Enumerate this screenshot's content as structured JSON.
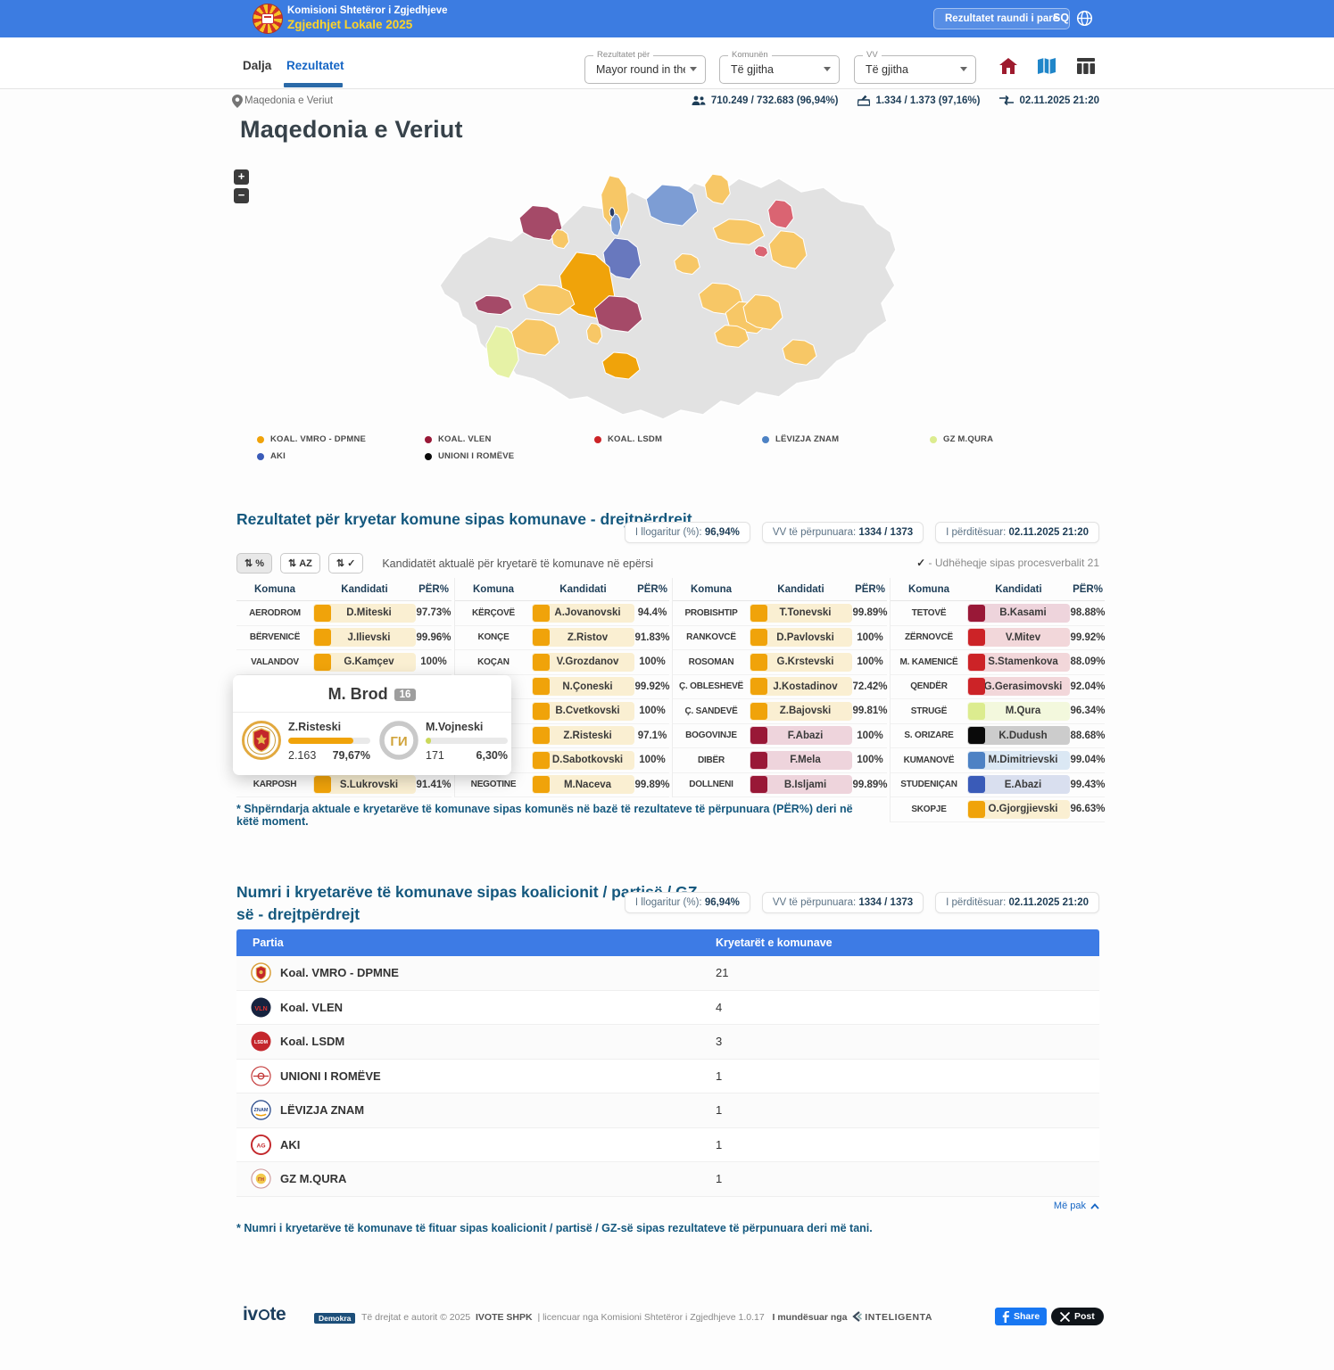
{
  "header": {
    "org": "Komisioni Shtetëror i Zgjedhjeve",
    "title": "Zgjedhjet Lokale 2025",
    "round_button": "Rezultatet raundi i parë",
    "lang": "SQ"
  },
  "nav": {
    "tabs": [
      {
        "label": "Dalja"
      },
      {
        "label": "Rezultatet"
      }
    ],
    "filters": [
      {
        "label": "Rezultatet për",
        "value": "Mayor round in the ..."
      },
      {
        "label": "Komunën",
        "value": "Të gjitha"
      },
      {
        "label": "VV",
        "value": "Të gjitha"
      }
    ]
  },
  "breadcrumb": {
    "location": "Maqedonia e Veriut"
  },
  "stats": {
    "turnout": "710.249 / 732.683 (96,94%)",
    "stations": "1.334 / 1.373 (97,16%)",
    "updated": "02.11.2025 21:20"
  },
  "page_title": "Maqedonia e Veriut",
  "map": {
    "zoom_in": "+",
    "zoom_out": "−"
  },
  "legend": [
    {
      "label": "KOAL. VMRO - DPMNE",
      "color": "#f0a30a"
    },
    {
      "label": "KOAL. VLEN",
      "color": "#991837"
    },
    {
      "label": "KOAL. LSDM",
      "color": "#cc2327"
    },
    {
      "label": "LËVIZJA ZNAM",
      "color": "#4d82c4"
    },
    {
      "label": "GZ M.QURA",
      "color": "#dcec8f"
    },
    {
      "label": "AKI",
      "color": "#3a5bb8"
    },
    {
      "label": "UNIONI I ROMËVE",
      "color": "#0a0a0a"
    }
  ],
  "stats_chips": [
    {
      "label": "I llogaritur (%):",
      "value": "96,94%"
    },
    {
      "label": "VV të përpunuara:",
      "value": "1334 / 1373"
    },
    {
      "label": "I përditësuar:",
      "value": "02.11.2025 21:20"
    }
  ],
  "section1": {
    "title": "Rezultatet për kryetar komune sipas komunave - drejtpërdrejt",
    "sort_buttons": [
      "%",
      "AZ",
      "✓"
    ],
    "caption": "Kandidatët aktualë për kryetarë të komunave në epërsi",
    "check_note": "- Udhëheqje sipas procesverbalit 21",
    "col_headers": [
      "Komuna",
      "Kandidati",
      "PËR%"
    ],
    "footnote": "* Shpërndarja aktuale e kryetarëve të komunave sipas komunës në bazë të rezultateve të përpunuara (PËR%) deri në këtë moment."
  },
  "results_columns": [
    [
      {
        "komuna": "AERODROM",
        "candidate": "D.Miteski",
        "pct": "97.73%",
        "party": "vmro"
      },
      {
        "komuna": "BËRVENICË",
        "candidate": "J.Ilievski",
        "pct": "99.96%",
        "party": "vmro"
      },
      {
        "komuna": "VALANDOV",
        "candidate": "G.Kamçev",
        "pct": "100%",
        "party": "vmro"
      },
      {
        "komuna": "",
        "candidate": "",
        "pct": "",
        "party": null
      },
      {
        "komuna": "",
        "candidate": "",
        "pct": "",
        "party": null
      },
      {
        "komuna": "",
        "candidate": "",
        "pct": "",
        "party": null
      },
      {
        "komuna": "",
        "candidate": "",
        "pct": "",
        "party": null
      },
      {
        "komuna": "KARPOSH",
        "candidate": "S.Lukrovski",
        "pct": "91.41%",
        "party": "vmro"
      }
    ],
    [
      {
        "komuna": "KËRÇOVË",
        "candidate": "A.Jovanovski",
        "pct": "94.4%",
        "party": "vmro"
      },
      {
        "komuna": "KONÇE",
        "candidate": "Z.Ristov",
        "pct": "91.83%",
        "party": "vmro"
      },
      {
        "komuna": "KOÇAN",
        "candidate": "V.Grozdanov",
        "pct": "100%",
        "party": "vmro"
      },
      {
        "komuna": "",
        "candidate": "N.Çoneski",
        "pct": "99.92%",
        "party": "vmro"
      },
      {
        "komuna": "",
        "candidate": "B.Cvetkovski",
        "pct": "100%",
        "party": "vmro"
      },
      {
        "komuna": "",
        "candidate": "Z.Risteski",
        "pct": "97.1%",
        "party": "vmro"
      },
      {
        "komuna": "",
        "candidate": "D.Sabotkovski",
        "pct": "100%",
        "party": "vmro"
      },
      {
        "komuna": "NEGOTINE",
        "candidate": "M.Naceva",
        "pct": "99.89%",
        "party": "vmro"
      }
    ],
    [
      {
        "komuna": "PROBISHTIP",
        "candidate": "T.Tonevski",
        "pct": "99.89%",
        "party": "vmro"
      },
      {
        "komuna": "RANKOVCË",
        "candidate": "D.Pavlovski",
        "pct": "100%",
        "party": "vmro"
      },
      {
        "komuna": "ROSOMAN",
        "candidate": "G.Krstevski",
        "pct": "100%",
        "party": "vmro"
      },
      {
        "komuna": "Ç. OBLESHEVË",
        "candidate": "J.Kostadinov",
        "pct": "72.42%",
        "party": "vmro"
      },
      {
        "komuna": "Ç. SANDEVË",
        "candidate": "Z.Bajovski",
        "pct": "99.81%",
        "party": "vmro"
      },
      {
        "komuna": "BOGOVINJE",
        "candidate": "F.Abazi",
        "pct": "100%",
        "party": "vlen"
      },
      {
        "komuna": "DIBËR",
        "candidate": "F.Mela",
        "pct": "100%",
        "party": "vlen"
      },
      {
        "komuna": "DOLLNENI",
        "candidate": "B.Isljami",
        "pct": "99.89%",
        "party": "vlen"
      }
    ],
    [
      {
        "komuna": "TETOVË",
        "candidate": "B.Kasami",
        "pct": "98.88%",
        "party": "vlen"
      },
      {
        "komuna": "ZËRNOVCË",
        "candidate": "V.Mitev",
        "pct": "99.92%",
        "party": "lsdm"
      },
      {
        "komuna": "M. KAMENICË",
        "candidate": "S.Stamenkova",
        "pct": "88.09%",
        "party": "lsdm"
      },
      {
        "komuna": "QENDËR",
        "candidate": "G.Gerasimovski",
        "pct": "92.04%",
        "party": "lsdm"
      },
      {
        "komuna": "STRUGË",
        "candidate": "M.Qura",
        "pct": "96.34%",
        "party": "gz"
      },
      {
        "komuna": "S. ORIZARE",
        "candidate": "K.Dudush",
        "pct": "88.68%",
        "party": "roma"
      },
      {
        "komuna": "KUMANOVË",
        "candidate": "M.Dimitrievski",
        "pct": "99.04%",
        "party": "znam"
      },
      {
        "komuna": "STUDENIÇAN",
        "candidate": "E.Abazi",
        "pct": "99.43%",
        "party": "aki"
      },
      {
        "komuna": "SKOPJE",
        "candidate": "O.Gjorgjievski",
        "pct": "96.63%",
        "party": "vmro"
      }
    ]
  ],
  "tooltip": {
    "title": "M. Brod",
    "badge": "16",
    "candidates": [
      {
        "name": "Z.Risteski",
        "votes": "2.163",
        "pct": "79,67%",
        "bar_pct": 79.7,
        "bar_color": "#f0a30a",
        "logo": "vmro-emblem"
      },
      {
        "name": "M.Vojneski",
        "votes": "171",
        "pct": "6,30%",
        "bar_pct": 6.3,
        "bar_color": "#cbd95a",
        "logo": "gi-emblem"
      }
    ]
  },
  "section2": {
    "title": "Numri i kryetarëve të komunave sipas koalicionit / partisë / GZ-së - drejtpërdrejt",
    "table_headers": [
      "Partia",
      "Kryetarët e komunave"
    ],
    "rows": [
      {
        "party": "Koal. VMRO - DPMNE",
        "count": "21",
        "logo": "vmro"
      },
      {
        "party": "Koal. VLEN",
        "count": "4",
        "logo": "vlen"
      },
      {
        "party": "Koal. LSDM",
        "count": "3",
        "logo": "lsdm"
      },
      {
        "party": "UNIONI I ROMËVE",
        "count": "1",
        "logo": "roma"
      },
      {
        "party": "LËVIZJA ZNAM",
        "count": "1",
        "logo": "znam"
      },
      {
        "party": "AKI",
        "count": "1",
        "logo": "aki"
      },
      {
        "party": "GZ M.QURA",
        "count": "1",
        "logo": "gz"
      }
    ],
    "more": "Më pak",
    "footnote": "* Numri i kryetarëve të komunave të fituar sipas koalicionit / partisë / GZ-së sipas rezultateve të përpunuara deri më tani."
  },
  "footer": {
    "brand_prefix": "iv",
    "brand_suffix": "te",
    "badge": "Demokra",
    "copyright": "Të drejtat e autorit © 2025",
    "company": "IVOTE SHPK",
    "license": "| licencuar nga Komisioni Shtetëror i Zgjedhjeve 1.0.17",
    "powered": "I mundësuar nga",
    "powered_brand": "INTELIGENTA",
    "share": "Share",
    "post": "Post"
  },
  "colors": {
    "vmro": {
      "sq": "#f0a30a",
      "bg": "#faefd2"
    },
    "vlen": {
      "sq": "#991837",
      "bg": "#eed4dc"
    },
    "lsdm": {
      "sq": "#cc2327",
      "bg": "#f2d7da"
    },
    "gz": {
      "sq": "#dcec8f",
      "bg": "#f3f8dd"
    },
    "roma": {
      "sq": "#0a0a0a",
      "bg": "#cccccc"
    },
    "znam": {
      "sq": "#4d82c4",
      "bg": "#dbe8f4"
    },
    "aki": {
      "sq": "#3a5bb8",
      "bg": "#d9dfef"
    }
  }
}
